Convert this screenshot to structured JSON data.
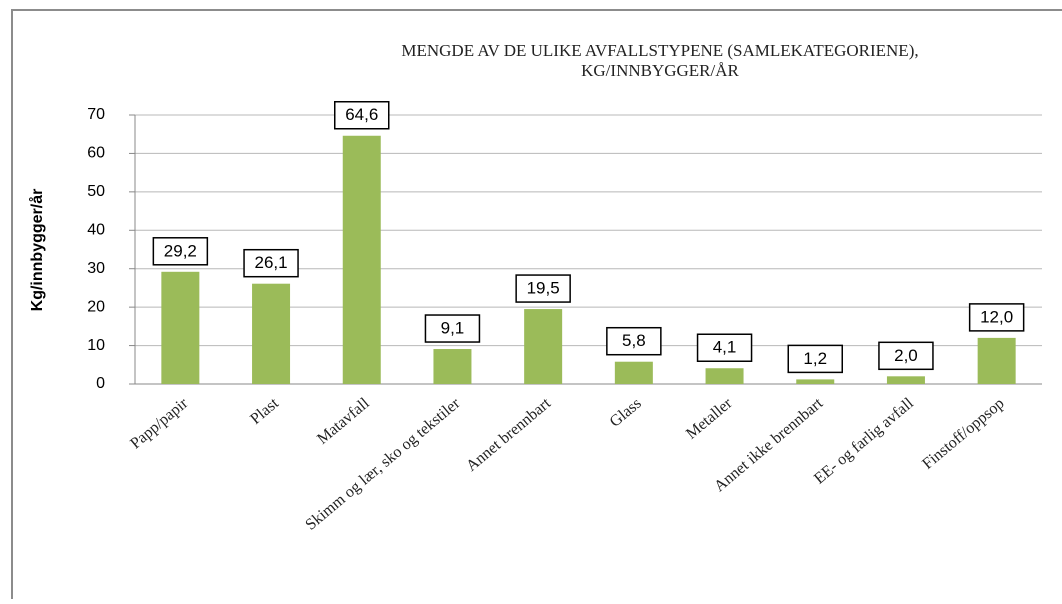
{
  "chart_data": {
    "type": "bar",
    "title": [
      "MENGDE AV DE ULIKE AVFALLSTYPENE  (SAMLEKATEGORIENE),",
      "KG/INNBYGGER/ÅR"
    ],
    "y_label": "Kg/innbygger/år",
    "categories": [
      "Papp/papir",
      "Plast",
      "Matavfall",
      "Skimm og lær, sko og tekstiler",
      "Annet brennbart",
      "Glass",
      "Metaller",
      "Annet ikke brennbart",
      "EE- og farlig avfall",
      "Finstoff/oppsop"
    ],
    "values": [
      29.2,
      26.1,
      64.6,
      9.1,
      19.5,
      5.8,
      4.1,
      1.2,
      2.0,
      12.0
    ],
    "value_labels": [
      "29,2",
      "26,1",
      "64,6",
      "9,1",
      "19,5",
      "5,8",
      "4,1",
      "1,2",
      "2,0",
      "12,0"
    ],
    "color": "#9bbb59",
    "ylim": [
      0,
      70
    ],
    "yticks": [
      0,
      10,
      20,
      30,
      40,
      50,
      60,
      70
    ],
    "grid": true
  }
}
